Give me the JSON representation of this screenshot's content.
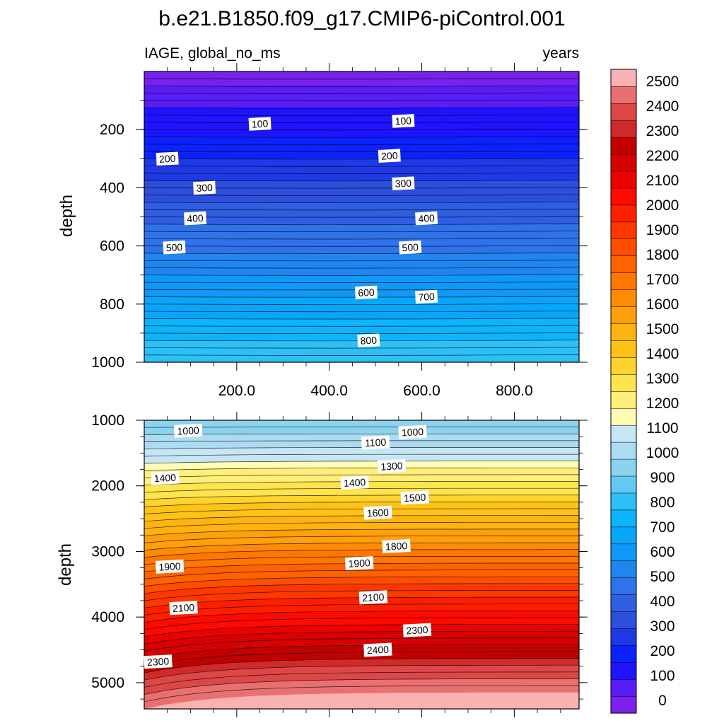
{
  "chart_data": {
    "title": "b.e21.B1850.f09_g17.CMIP6-piControl.001",
    "variable_label": "IAGE, global_no_ms",
    "units_label": "years",
    "type": "heatmap",
    "x_axis": {
      "ticks": [
        "200.0",
        "400.0",
        "600.0",
        "800.0"
      ],
      "range": [
        0,
        940
      ]
    },
    "panels": [
      {
        "name": "upper",
        "ylabel": "depth",
        "ylim": [
          0,
          1000
        ],
        "y_ticks": [
          "200",
          "400",
          "600",
          "800",
          "1000"
        ],
        "contour_labels": [
          {
            "text": "100",
            "x": 250,
            "depth": 180
          },
          {
            "text": "100",
            "x": 560,
            "depth": 170
          },
          {
            "text": "200",
            "x": 50,
            "depth": 300
          },
          {
            "text": "200",
            "x": 530,
            "depth": 290
          },
          {
            "text": "300",
            "x": 130,
            "depth": 400
          },
          {
            "text": "300",
            "x": 560,
            "depth": 385
          },
          {
            "text": "400",
            "x": 110,
            "depth": 505
          },
          {
            "text": "400",
            "x": 610,
            "depth": 505
          },
          {
            "text": "500",
            "x": 65,
            "depth": 605
          },
          {
            "text": "500",
            "x": 575,
            "depth": 605
          },
          {
            "text": "600",
            "x": 480,
            "depth": 760
          },
          {
            "text": "700",
            "x": 610,
            "depth": 775
          },
          {
            "text": "800",
            "x": 485,
            "depth": 925
          }
        ]
      },
      {
        "name": "lower",
        "ylabel": "depth",
        "ylim": [
          1000,
          5400
        ],
        "y_ticks": [
          "1000",
          "2000",
          "3000",
          "4000",
          "5000"
        ],
        "contour_labels": [
          {
            "text": "1000",
            "x": 95,
            "depth": 1160
          },
          {
            "text": "1000",
            "x": 580,
            "depth": 1180
          },
          {
            "text": "1100",
            "x": 500,
            "depth": 1340
          },
          {
            "text": "1300",
            "x": 535,
            "depth": 1700
          },
          {
            "text": "1400",
            "x": 45,
            "depth": 1880
          },
          {
            "text": "1400",
            "x": 455,
            "depth": 1950
          },
          {
            "text": "1500",
            "x": 585,
            "depth": 2180
          },
          {
            "text": "1600",
            "x": 505,
            "depth": 2410
          },
          {
            "text": "1800",
            "x": 545,
            "depth": 2920
          },
          {
            "text": "1900",
            "x": 55,
            "depth": 3230
          },
          {
            "text": "1900",
            "x": 465,
            "depth": 3180
          },
          {
            "text": "2100",
            "x": 85,
            "depth": 3860
          },
          {
            "text": "2100",
            "x": 495,
            "depth": 3700
          },
          {
            "text": "2300",
            "x": 590,
            "depth": 4200
          },
          {
            "text": "2300",
            "x": 30,
            "depth": 4680
          },
          {
            "text": "2400",
            "x": 505,
            "depth": 4500
          }
        ]
      }
    ],
    "colorbar": {
      "labels": [
        "0",
        "100",
        "200",
        "300",
        "400",
        "500",
        "600",
        "700",
        "800",
        "900",
        "1000",
        "1100",
        "1200",
        "1300",
        "1400",
        "1500",
        "1600",
        "1700",
        "1800",
        "1900",
        "2000",
        "2100",
        "2200",
        "2300",
        "2400",
        "2500"
      ],
      "colors": [
        "#7a21f0",
        "#5a1cf7",
        "#1e14ff",
        "#0b22ff",
        "#1f39e6",
        "#2d4fdc",
        "#2f5ee3",
        "#2f72ea",
        "#1f86f0",
        "#0f98f7",
        "#08a6fb",
        "#0cb4fc",
        "#2cc0f6",
        "#62c9f2",
        "#8bd3ef",
        "#abdcf2",
        "#c5e6f5",
        "#fffcb4",
        "#ffef78",
        "#ffe44e",
        "#ffd32d",
        "#ffc318",
        "#ffb30f",
        "#ffa00a",
        "#ff8a05",
        "#ff7600",
        "#ff6200",
        "#ff4e00",
        "#ff3700",
        "#ff1f00",
        "#ff0a00",
        "#ee0000",
        "#d80000",
        "#c30000",
        "#d02a2a",
        "#dd4747",
        "#ea7070",
        "#f9b1b1"
      ]
    }
  }
}
